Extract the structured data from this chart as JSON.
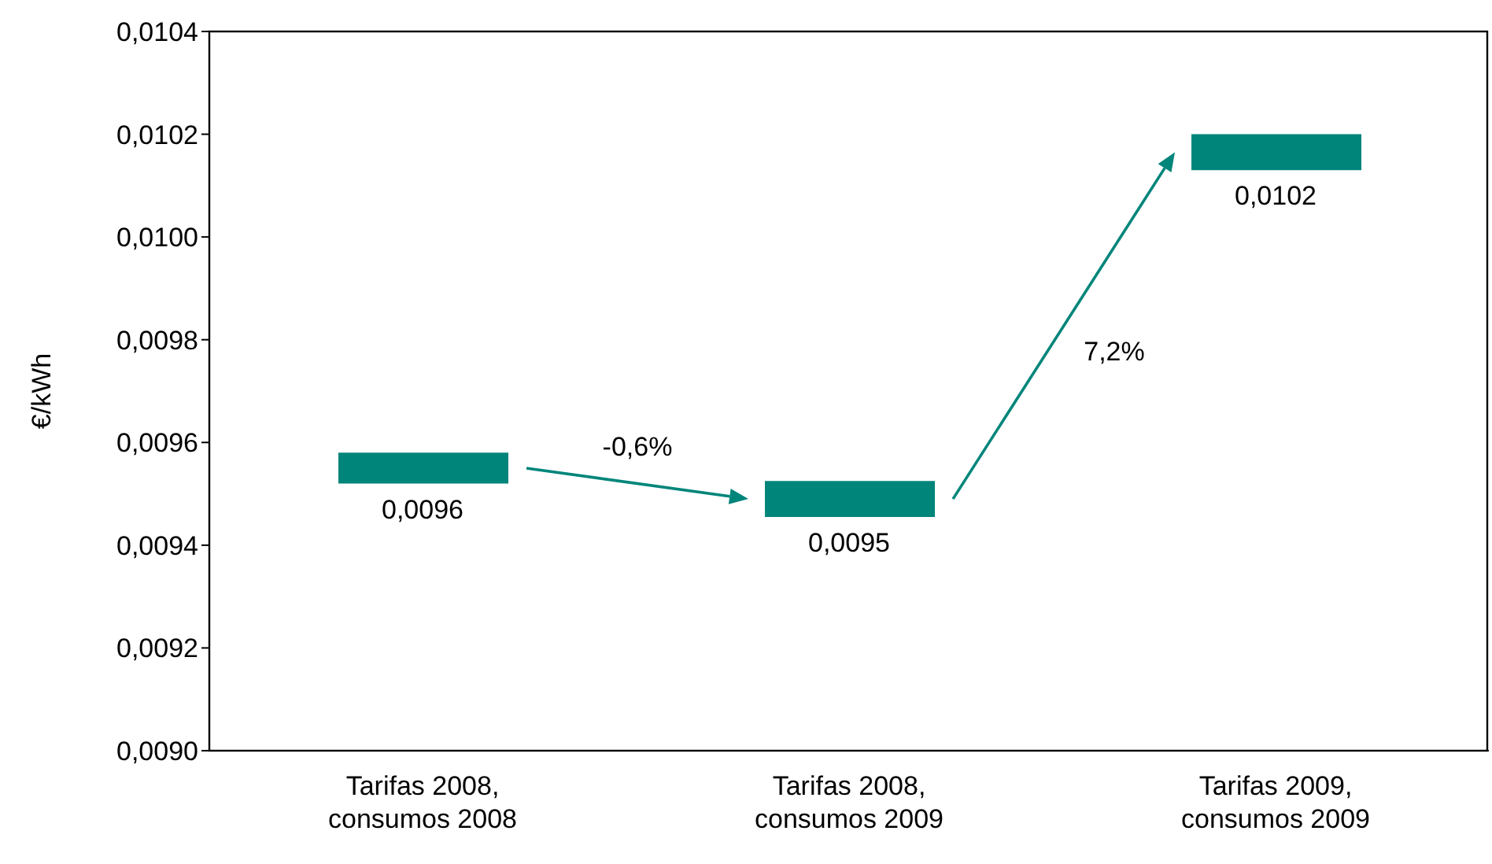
{
  "chart_data": {
    "type": "bar",
    "ylabel": "€/kWh",
    "categories": [
      "Tarifas 2008, consumos 2008",
      "Tarifas 2008, consumos 2009",
      "Tarifas 2009, consumos 2009"
    ],
    "base": [
      0.00952,
      0.009455,
      0.01013
    ],
    "values": [
      6e-05,
      7e-05,
      7e-05
    ],
    "color": "#00857a",
    "annotations": [
      {
        "text": "0,0096",
        "x": "Tarifas 2008, consumos 2008",
        "y": 0.00952
      },
      {
        "text": "0,0095",
        "x": "Tarifas 2008, consumos 2009",
        "y": 0.009455
      },
      {
        "text": "0,0102",
        "x": "Tarifas 2009, consumos 2009",
        "y": 0.01013
      },
      "-0,6%",
      "7,2%"
    ],
    "ylim": [
      0.009,
      0.0104
    ],
    "yticks": [
      {
        "value": 0.009,
        "label": "0,0090"
      },
      {
        "value": 0.0092,
        "label": "0,0092"
      },
      {
        "value": 0.0094,
        "label": "0,0094"
      },
      {
        "value": 0.0096,
        "label": "0,0096"
      },
      {
        "value": 0.0098,
        "label": "0,0098"
      },
      {
        "value": 0.01,
        "label": "0,0100"
      },
      {
        "value": 0.0102,
        "label": "0,0102"
      },
      {
        "value": 0.0104,
        "label": "0,0104"
      }
    ]
  }
}
